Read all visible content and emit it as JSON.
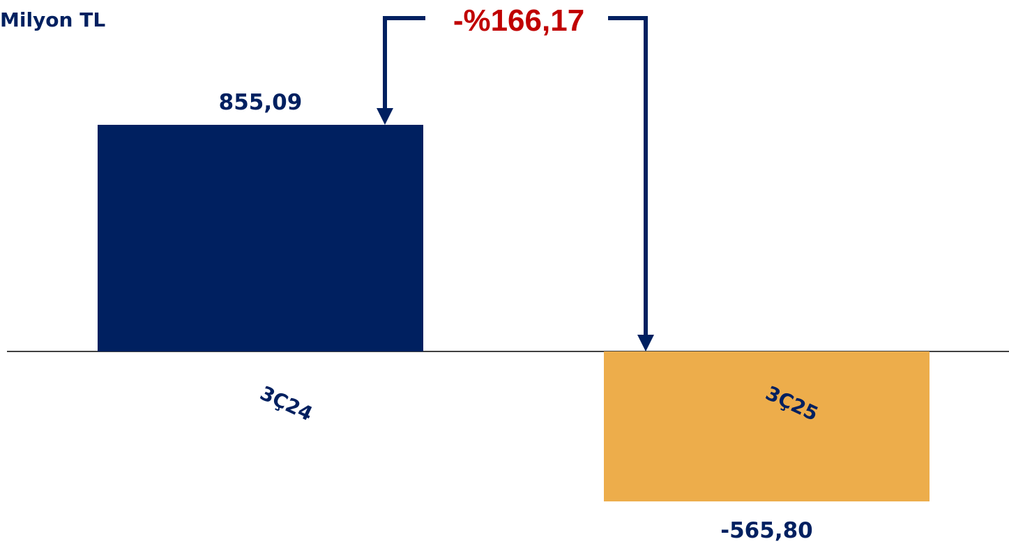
{
  "colors": {
    "navy": "#002060",
    "orange": "#EDAD4B",
    "red": "#C00000",
    "baseline": "#000000"
  },
  "chart_data": {
    "type": "bar",
    "unit_label": "Milyon TL",
    "categories": [
      "3Ç24",
      "3Ç25"
    ],
    "values": [
      855.09,
      -565.8
    ],
    "value_labels": [
      "855,09",
      "-565,80"
    ],
    "bar_colors": [
      "#002060",
      "#EDAD4B"
    ],
    "change_label": "-%166,17",
    "grid": false,
    "legend": "none"
  }
}
